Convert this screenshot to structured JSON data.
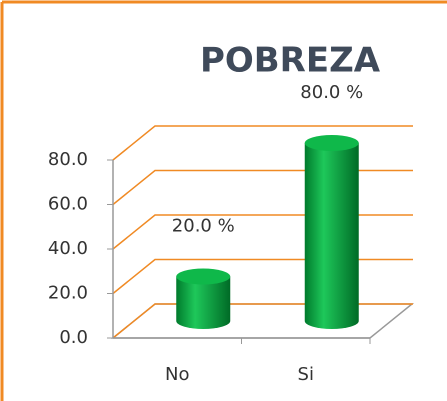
{
  "chart_data": {
    "type": "bar3d",
    "title": "POBREZA",
    "categories": [
      "No",
      "Si"
    ],
    "values": [
      20,
      80
    ],
    "value_labels": [
      "20.0 %",
      "80.0 %"
    ],
    "color": "#00a03c",
    "grid_color": "#f08a24",
    "ylim": [
      0,
      80
    ],
    "yticks": [
      {
        "value": 0,
        "label": "0.0"
      },
      {
        "value": 20,
        "label": "20.0"
      },
      {
        "value": 40,
        "label": "40.0"
      },
      {
        "value": 60,
        "label": "60.0"
      },
      {
        "value": 80,
        "label": "80.0"
      }
    ],
    "grid": true
  }
}
